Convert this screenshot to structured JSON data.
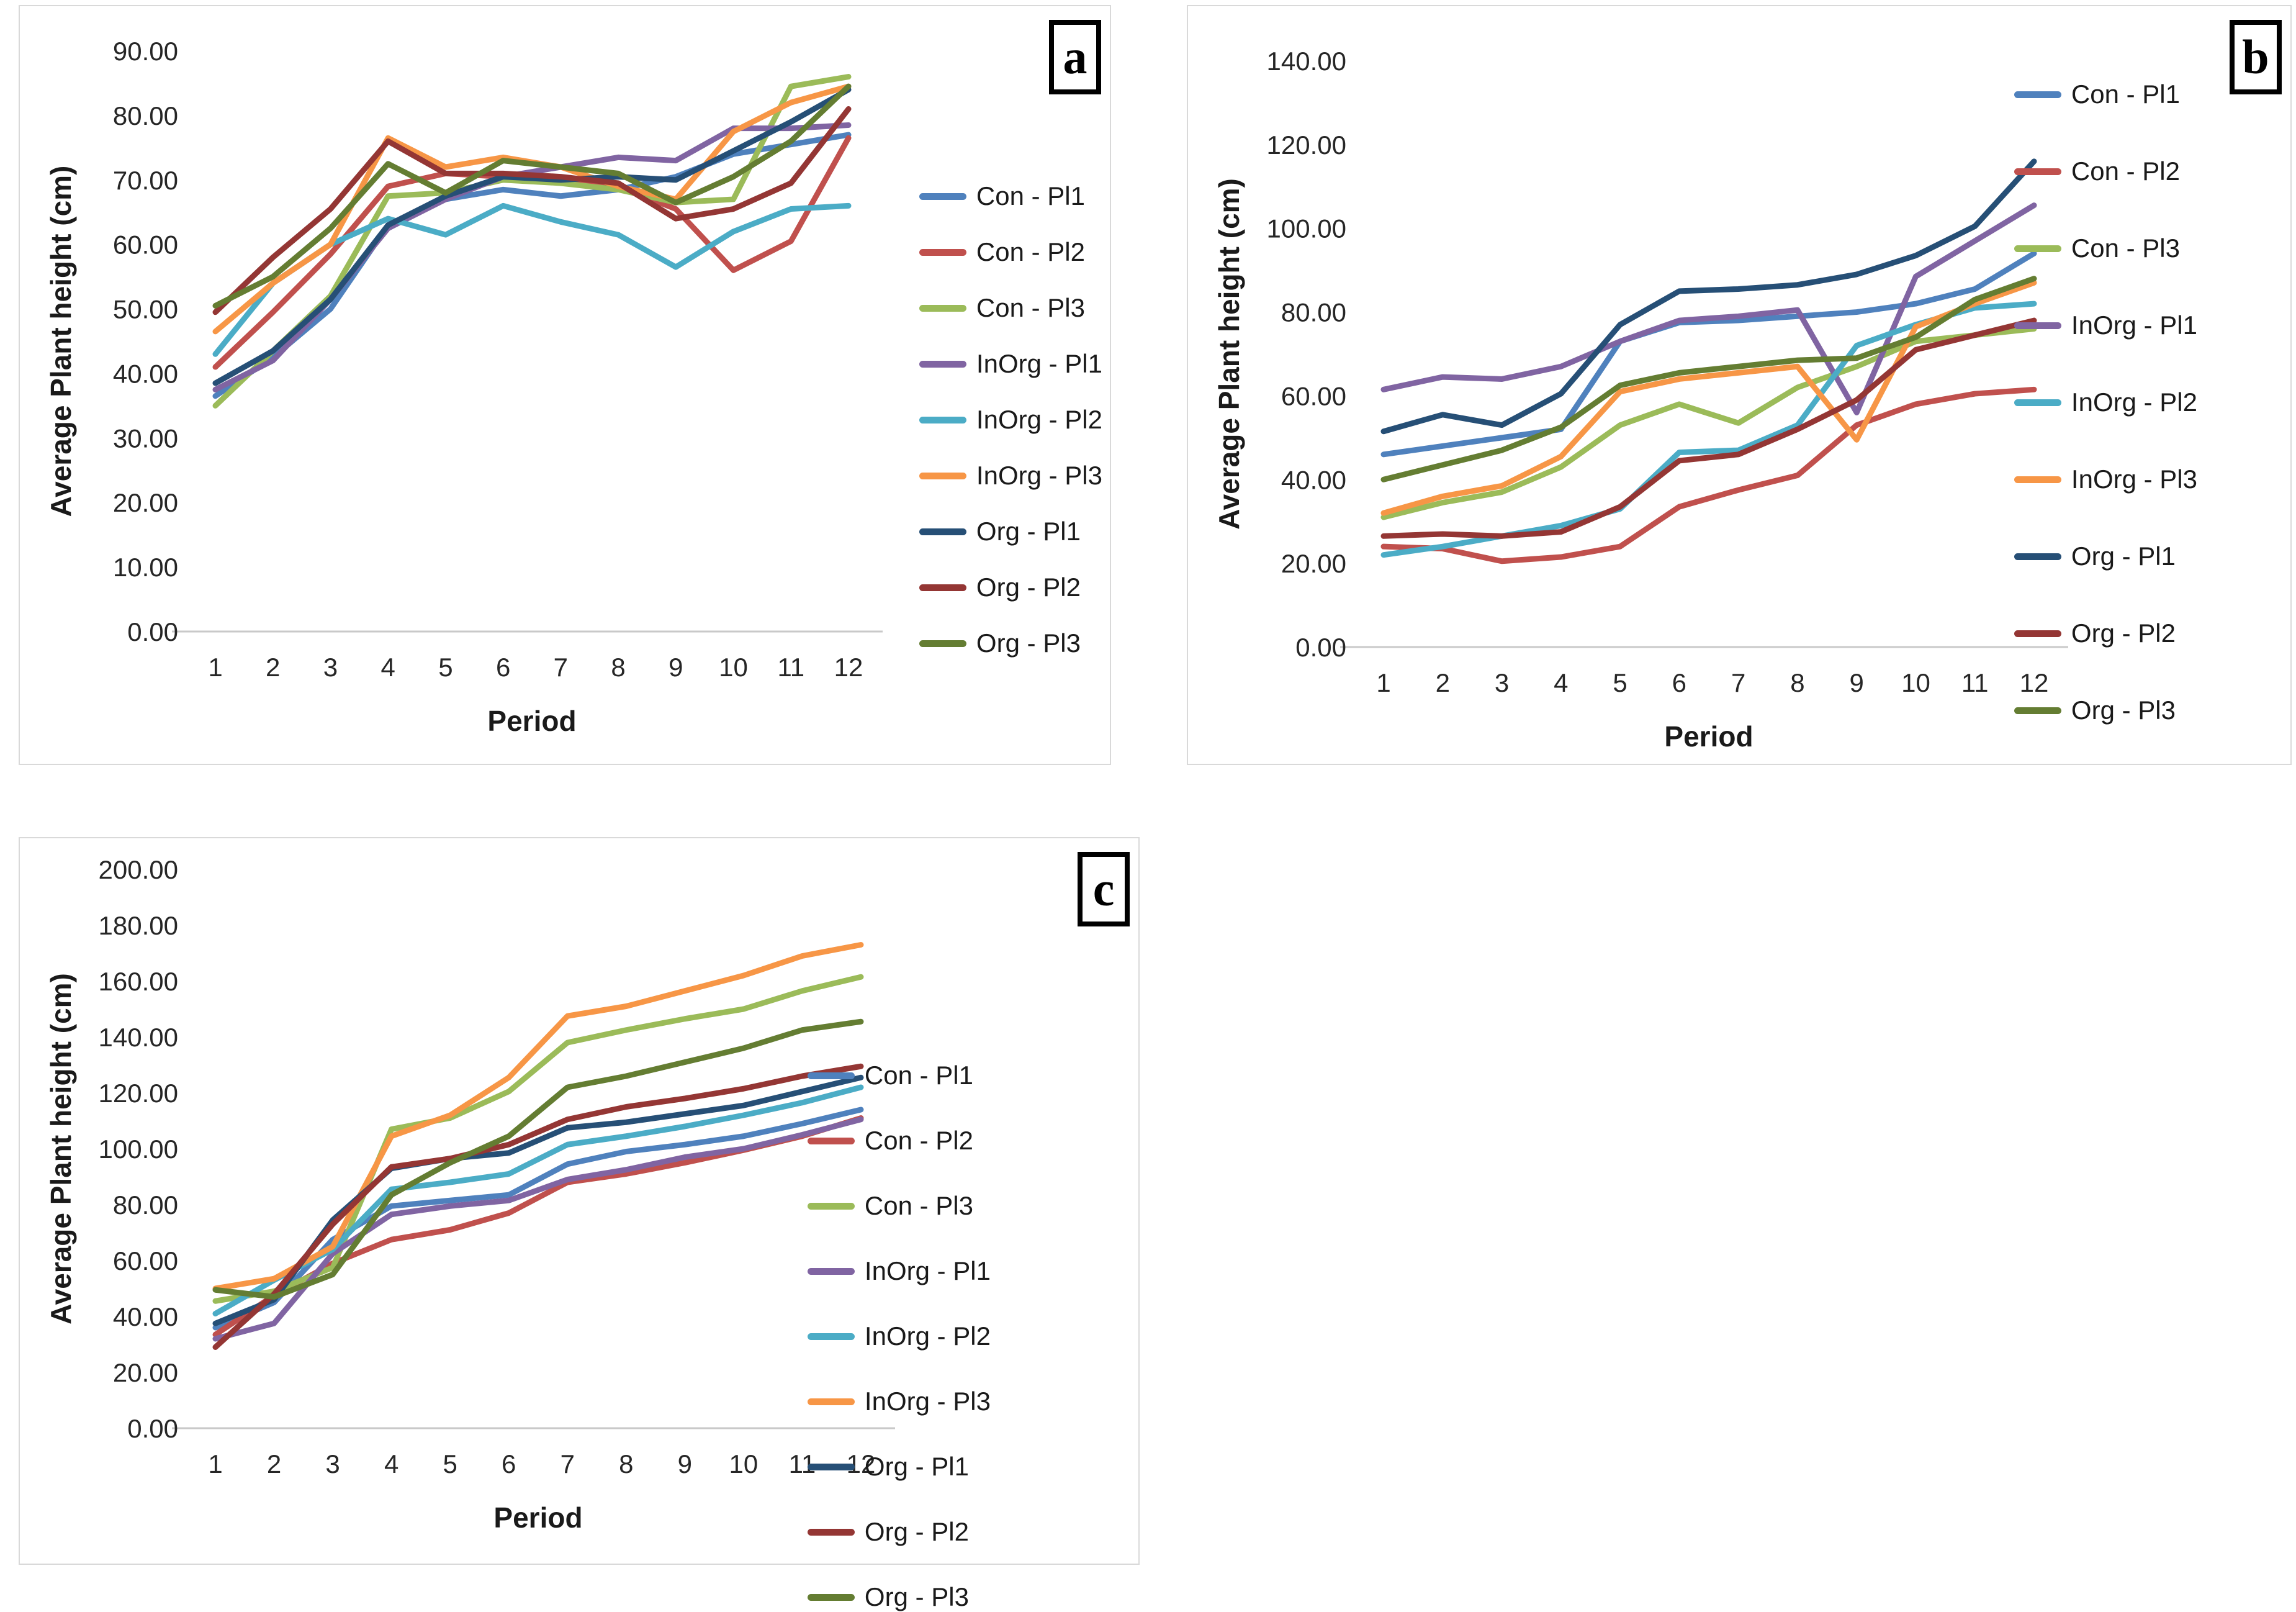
{
  "figure": {
    "xlabel": "Period",
    "ylabel": "Average Plant height (cm)",
    "x_categories": [
      1,
      2,
      3,
      4,
      5,
      6,
      7,
      8,
      9,
      10,
      11,
      12
    ],
    "series_names": [
      "Con - Pl1",
      "Con - Pl2",
      "Con - Pl3",
      "InOrg - Pl1",
      "InOrg - Pl2",
      "InOrg - Pl3",
      "Org - Pl1",
      "Org - Pl2",
      "Org - Pl3"
    ],
    "colors": {
      "con_pl1": "#4F81BD",
      "con_pl2": "#C0504D",
      "con_pl3": "#9BBB59",
      "inorg_pl1": "#8064A2",
      "inorg_pl2": "#4BACC6",
      "inorg_pl3": "#F79646",
      "org_pl1": "#264F76",
      "org_pl2": "#943634",
      "org_pl3": "#647D32",
      "axis_line": "#c9c9c9",
      "tick_text": "#262626"
    }
  },
  "chart_data": [
    {
      "type": "line",
      "panel_letter": "a",
      "xlabel": "Period",
      "ylabel": "Average Plant height (cm)",
      "x": [
        1,
        2,
        3,
        4,
        5,
        6,
        7,
        8,
        9,
        10,
        11,
        12
      ],
      "ylim": [
        0,
        90
      ],
      "ystep": 10,
      "tick_decimals": 2,
      "grid": false,
      "legend_position": "right",
      "series": [
        {
          "name": "Con - Pl1",
          "color": "#4F81BD",
          "values": [
            36.5,
            42.5,
            50,
            63,
            67,
            68.5,
            67.5,
            68.5,
            70.5,
            74,
            75.5,
            77
          ]
        },
        {
          "name": "Con - Pl2",
          "color": "#C0504D",
          "values": [
            41,
            49.5,
            58.5,
            69,
            71,
            70.5,
            70,
            69,
            65.5,
            56,
            60.5,
            76.5
          ]
        },
        {
          "name": "Con - Pl3",
          "color": "#9BBB59",
          "values": [
            35,
            43.5,
            52,
            67.5,
            68,
            70,
            69.5,
            68.5,
            66.5,
            67,
            84.5,
            86
          ]
        },
        {
          "name": "InOrg - Pl1",
          "color": "#8064A2",
          "values": [
            37.5,
            42,
            51.5,
            62.5,
            67,
            70.5,
            72,
            73.5,
            73,
            78,
            78,
            78.5
          ]
        },
        {
          "name": "InOrg - Pl2",
          "color": "#4BACC6",
          "values": [
            43,
            54,
            60,
            64,
            61.5,
            66,
            63.5,
            61.5,
            56.5,
            62,
            65.5,
            66
          ]
        },
        {
          "name": "InOrg - Pl3",
          "color": "#F79646",
          "values": [
            46.5,
            54,
            60,
            76.5,
            72,
            73.5,
            72,
            69,
            67,
            77.5,
            82,
            84.5
          ]
        },
        {
          "name": "Org - Pl1",
          "color": "#264F76",
          "values": [
            38.5,
            43.5,
            51.5,
            63,
            67.5,
            70.5,
            70,
            70.5,
            70,
            74.5,
            79,
            84
          ]
        },
        {
          "name": "Org - Pl2",
          "color": "#943634",
          "values": [
            49.5,
            58,
            65.5,
            76,
            71,
            71,
            70.5,
            69.5,
            64,
            65.5,
            69.5,
            81
          ]
        },
        {
          "name": "Org - Pl3",
          "color": "#647D32",
          "values": [
            50.5,
            55,
            62.5,
            72.5,
            68,
            73,
            72,
            71,
            66.5,
            70.5,
            76,
            84.5
          ]
        }
      ]
    },
    {
      "type": "line",
      "panel_letter": "b",
      "xlabel": "Period",
      "ylabel": "Average Plant height (cm)",
      "x": [
        1,
        2,
        3,
        4,
        5,
        6,
        7,
        8,
        9,
        10,
        11,
        12
      ],
      "ylim": [
        0,
        140
      ],
      "ystep": 20,
      "tick_decimals": 2,
      "grid": false,
      "legend_position": "right",
      "series": [
        {
          "name": "Con - Pl1",
          "color": "#4F81BD",
          "values": [
            46,
            48,
            50,
            52,
            73,
            77.5,
            78,
            79,
            80,
            82,
            85.5,
            94
          ]
        },
        {
          "name": "Con - Pl2",
          "color": "#C0504D",
          "values": [
            24,
            23.5,
            20.5,
            21.5,
            24,
            33.5,
            37.5,
            41,
            53,
            58,
            60.5,
            61.5
          ]
        },
        {
          "name": "Con - Pl3",
          "color": "#9BBB59",
          "values": [
            31,
            34.5,
            37,
            43,
            53,
            58,
            53.5,
            62,
            67,
            73,
            74.5,
            76
          ]
        },
        {
          "name": "InOrg - Pl1",
          "color": "#8064A2",
          "values": [
            61.5,
            64.5,
            64,
            67,
            73,
            78,
            79,
            80.5,
            56,
            88.5,
            97,
            105.5
          ]
        },
        {
          "name": "InOrg - Pl2",
          "color": "#4BACC6",
          "values": [
            22,
            24,
            26.5,
            29,
            33,
            46.5,
            47,
            53,
            72,
            77,
            81,
            82
          ]
        },
        {
          "name": "InOrg - Pl3",
          "color": "#F79646",
          "values": [
            32,
            36,
            38.5,
            45.5,
            61,
            64,
            65.5,
            67,
            49.5,
            76.5,
            82,
            87
          ]
        },
        {
          "name": "Org - Pl1",
          "color": "#264F76",
          "values": [
            51.5,
            55.5,
            53,
            60.5,
            77,
            85,
            85.5,
            86.5,
            89,
            93.5,
            100.5,
            116
          ]
        },
        {
          "name": "Org - Pl2",
          "color": "#943634",
          "values": [
            26.5,
            27,
            26.5,
            27.5,
            33.5,
            44.5,
            46,
            52,
            59,
            71,
            74.5,
            78
          ]
        },
        {
          "name": "Org - Pl3",
          "color": "#647D32",
          "values": [
            40,
            43.5,
            47,
            52.5,
            62.5,
            65.5,
            67,
            68.5,
            69,
            74,
            83,
            88
          ]
        }
      ]
    },
    {
      "type": "line",
      "panel_letter": "c",
      "xlabel": "Period",
      "ylabel": "Average Plant height (cm)",
      "x": [
        1,
        2,
        3,
        4,
        5,
        6,
        7,
        8,
        9,
        10,
        11,
        12
      ],
      "ylim": [
        0,
        200
      ],
      "ystep": 20,
      "tick_decimals": 2,
      "grid": false,
      "legend_position": "right",
      "series": [
        {
          "name": "Con - Pl1",
          "color": "#4F81BD",
          "values": [
            36,
            45,
            67.5,
            79.5,
            81.5,
            83.5,
            94.5,
            99,
            101.5,
            104.5,
            109,
            114
          ]
        },
        {
          "name": "Con - Pl2",
          "color": "#C0504D",
          "values": [
            33.5,
            47.5,
            59,
            67.5,
            71,
            77,
            88,
            91,
            95,
            99.5,
            104.5,
            111
          ]
        },
        {
          "name": "Con - Pl3",
          "color": "#9BBB59",
          "values": [
            45.5,
            49,
            57.5,
            107,
            111,
            120.5,
            138,
            142.5,
            146.5,
            150,
            156.5,
            161.5
          ]
        },
        {
          "name": "InOrg - Pl1",
          "color": "#8064A2",
          "values": [
            32,
            37.5,
            62.5,
            76.5,
            79.5,
            81.5,
            89,
            92.5,
            97,
            100,
            105,
            110.5
          ]
        },
        {
          "name": "InOrg - Pl2",
          "color": "#4BACC6",
          "values": [
            41,
            53,
            64,
            85.5,
            88,
            91,
            101.5,
            104.5,
            108,
            112,
            116.5,
            122
          ]
        },
        {
          "name": "InOrg - Pl3",
          "color": "#F79646",
          "values": [
            50,
            53.5,
            65,
            104.5,
            112,
            125.5,
            147.5,
            151,
            156.5,
            162,
            169,
            173
          ]
        },
        {
          "name": "Org - Pl1",
          "color": "#264F76",
          "values": [
            37.5,
            46,
            74.5,
            93,
            96.5,
            98.5,
            107.5,
            109.5,
            112.5,
            115.5,
            120.5,
            125.5
          ]
        },
        {
          "name": "Org - Pl2",
          "color": "#943634",
          "values": [
            29,
            48,
            73,
            93.5,
            96.5,
            101.5,
            110.5,
            115,
            118,
            121.5,
            126,
            129.5
          ]
        },
        {
          "name": "Org - Pl3",
          "color": "#647D32",
          "values": [
            49.5,
            47,
            55,
            83.5,
            95,
            104.5,
            122,
            126,
            131,
            136,
            142.5,
            145.5
          ]
        }
      ]
    }
  ]
}
